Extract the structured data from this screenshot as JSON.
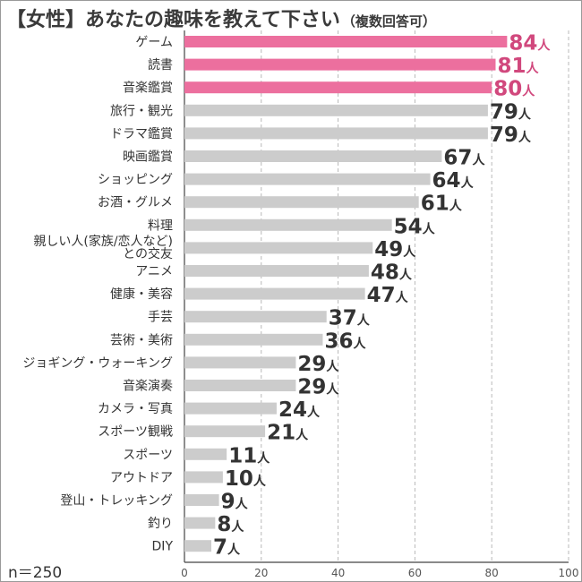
{
  "title": {
    "main": "【女性】あなたの趣味を教えて下さい",
    "sub": "（複数回答可）"
  },
  "sample_size": "n＝250",
  "colors": {
    "highlight": "#ec6f9e",
    "highlight_text": "#d1487d",
    "bar": "#cccccc",
    "text": "#333333",
    "grid": "#b8b8b8"
  },
  "chart_data": {
    "type": "bar",
    "orientation": "horizontal",
    "categories": [
      "ゲーム",
      "読書",
      "音楽鑑賞",
      "旅行・観光",
      "ドラマ鑑賞",
      "映画鑑賞",
      "ショッピング",
      "お酒・グルメ",
      "料理",
      "親しい人(家族/恋人など)との交友",
      "アニメ",
      "健康・美容",
      "手芸",
      "芸術・美術",
      "ジョギング・ウォーキング",
      "音楽演奏",
      "カメラ・写真",
      "スポーツ観戦",
      "スポーツ",
      "アウトドア",
      "登山・トレッキング",
      "釣り",
      "DIY"
    ],
    "category_lines": [
      [
        "ゲーム"
      ],
      [
        "読書"
      ],
      [
        "音楽鑑賞"
      ],
      [
        "旅行・観光"
      ],
      [
        "ドラマ鑑賞"
      ],
      [
        "映画鑑賞"
      ],
      [
        "ショッピング"
      ],
      [
        "お酒・グルメ"
      ],
      [
        "料理"
      ],
      [
        "親しい人(家族/恋人など)",
        "との交友"
      ],
      [
        "アニメ"
      ],
      [
        "健康・美容"
      ],
      [
        "手芸"
      ],
      [
        "芸術・美術"
      ],
      [
        "ジョギング・ウォーキング"
      ],
      [
        "音楽演奏"
      ],
      [
        "カメラ・写真"
      ],
      [
        "スポーツ観戦"
      ],
      [
        "スポーツ"
      ],
      [
        "アウトドア"
      ],
      [
        "登山・トレッキング"
      ],
      [
        "釣り"
      ],
      [
        "DIY"
      ]
    ],
    "values": [
      84,
      81,
      80,
      79,
      79,
      67,
      64,
      61,
      54,
      49,
      48,
      47,
      37,
      36,
      29,
      29,
      24,
      21,
      11,
      10,
      9,
      8,
      7
    ],
    "highlighted": [
      0,
      1,
      2
    ],
    "value_unit": "人",
    "xlim": [
      0,
      100
    ],
    "xticks": [
      0,
      20,
      40,
      60,
      80,
      100
    ],
    "grid": "vertical dashed"
  }
}
